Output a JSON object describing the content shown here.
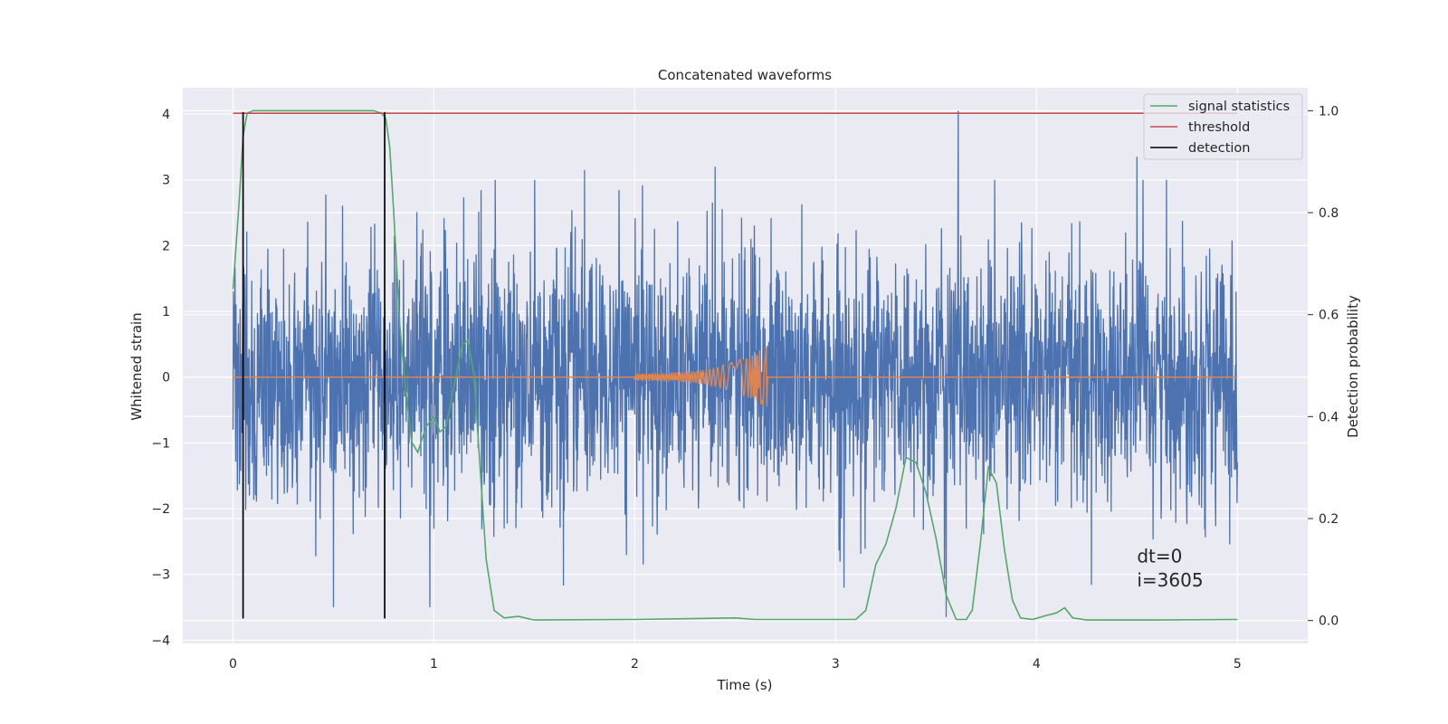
{
  "chart_data": {
    "type": "line",
    "title": "Concatenated waveforms",
    "xlabel": "Time (s)",
    "ylabel_left": "Whitened strain",
    "ylabel_right": "Detection probability",
    "xlim": [
      -0.25,
      5.35
    ],
    "ylim_left": [
      -4.05,
      4.4
    ],
    "ylim_right": [
      -0.045,
      1.045
    ],
    "x_ticks": [
      {
        "value": 0,
        "label": "0"
      },
      {
        "value": 1,
        "label": "1"
      },
      {
        "value": 2,
        "label": "2"
      },
      {
        "value": 3,
        "label": "3"
      },
      {
        "value": 4,
        "label": "4"
      },
      {
        "value": 5,
        "label": "5"
      }
    ],
    "y_ticks_left": [
      {
        "value": 4,
        "label": "4"
      },
      {
        "value": 3,
        "label": "3"
      },
      {
        "value": 2,
        "label": "2"
      },
      {
        "value": 1,
        "label": "1"
      },
      {
        "value": 0,
        "label": "0"
      },
      {
        "value": -1,
        "label": "−1"
      },
      {
        "value": -2,
        "label": "−2"
      },
      {
        "value": -3,
        "label": "−3"
      },
      {
        "value": -4,
        "label": "−4"
      }
    ],
    "y_ticks_right": [
      {
        "value": 1.0,
        "label": "1.0"
      },
      {
        "value": 0.8,
        "label": "0.8"
      },
      {
        "value": 0.6,
        "label": "0.6"
      },
      {
        "value": 0.4,
        "label": "0.4"
      },
      {
        "value": 0.2,
        "label": "0.2"
      },
      {
        "value": 0.0,
        "label": "0.0"
      }
    ],
    "grid": true,
    "legend_position": "top-right",
    "colors": {
      "strain": "#4c72b0",
      "injection": "#dd8452",
      "signal_statistics": "#55a868",
      "threshold": "#c44e52",
      "detection": "#000000",
      "axes_bg": "#eaeaf2",
      "grid": "#ffffff"
    },
    "strain": {
      "note_style": "noise",
      "x_range": [
        0,
        5
      ],
      "approx_envelope": [
        -3.6,
        4.05
      ],
      "notable_peaks": [
        {
          "x": 3.61,
          "y": 4.05
        },
        {
          "x": 0.5,
          "y": -3.5
        },
        {
          "x": 0.98,
          "y": -3.5
        },
        {
          "x": 3.55,
          "y": -3.65
        },
        {
          "x": 4.5,
          "y": 3.35
        },
        {
          "x": 1.75,
          "y": 3.15
        },
        {
          "x": 2.4,
          "y": 3.2
        }
      ]
    },
    "injection": {
      "x_start": 2.0,
      "x_end": 2.66,
      "peak_amplitude": 0.48
    },
    "series": [
      {
        "name": "signal statistics",
        "axis": "right",
        "x": [
          0.0,
          0.03,
          0.05,
          0.07,
          0.1,
          0.2,
          0.4,
          0.6,
          0.7,
          0.74,
          0.76,
          0.78,
          0.8,
          0.83,
          0.86,
          0.89,
          0.92,
          0.96,
          1.0,
          1.03,
          1.06,
          1.1,
          1.14,
          1.17,
          1.2,
          1.23,
          1.26,
          1.3,
          1.35,
          1.42,
          1.5,
          2.0,
          2.5,
          2.6,
          2.9,
          3.1,
          3.15,
          3.2,
          3.25,
          3.3,
          3.35,
          3.4,
          3.45,
          3.5,
          3.55,
          3.6,
          3.65,
          3.68,
          3.72,
          3.76,
          3.8,
          3.84,
          3.88,
          3.92,
          3.98,
          4.05,
          4.1,
          4.14,
          4.18,
          4.25,
          4.6,
          5.0
        ],
        "y": [
          0.65,
          0.82,
          0.95,
          0.995,
          1.0,
          1.0,
          1.0,
          1.0,
          1.0,
          0.995,
          0.985,
          0.93,
          0.8,
          0.58,
          0.45,
          0.35,
          0.33,
          0.38,
          0.4,
          0.37,
          0.38,
          0.46,
          0.54,
          0.55,
          0.48,
          0.3,
          0.12,
          0.02,
          0.005,
          0.008,
          0.001,
          0.002,
          0.005,
          0.002,
          0.002,
          0.002,
          0.02,
          0.11,
          0.15,
          0.22,
          0.32,
          0.31,
          0.25,
          0.16,
          0.05,
          0.002,
          0.002,
          0.02,
          0.15,
          0.3,
          0.27,
          0.14,
          0.04,
          0.005,
          0.002,
          0.01,
          0.015,
          0.025,
          0.005,
          0.001,
          0.001,
          0.002
        ]
      },
      {
        "name": "threshold",
        "axis": "right",
        "x": [
          0,
          5
        ],
        "y": [
          0.995,
          0.995
        ]
      }
    ],
    "detections": {
      "name": "detection",
      "x": [
        0.05,
        0.755
      ],
      "y_range_left": [
        -3.67,
        4.03
      ]
    },
    "annotations": [
      {
        "text": "dt=0",
        "x": 4.5,
        "y": -2.82
      },
      {
        "text": "i=3605",
        "x": 4.5,
        "y": -3.18
      }
    ],
    "legend": [
      "signal statistics",
      "threshold",
      "detection"
    ]
  }
}
